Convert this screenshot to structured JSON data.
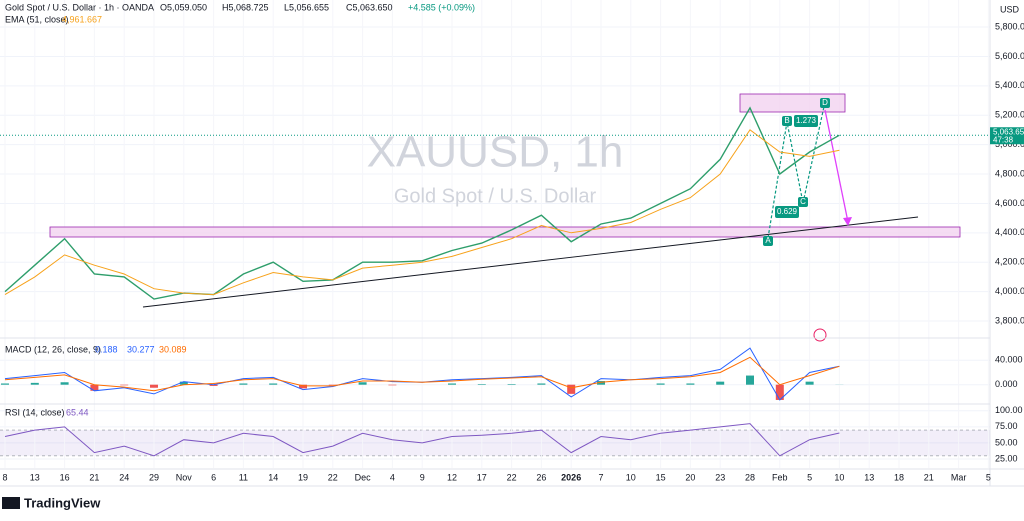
{
  "chart_data": [
    {
      "type": "line",
      "title": "Gold Spot / U.S. Dollar · 1h · OANDA",
      "legend_values": [
        "O5,059.050",
        "H5,068.725",
        "L5,056.655",
        "C5,063.650",
        "+4.585 (+0.09%)"
      ],
      "watermark": [
        "XAUUSD, 1h",
        "Gold Spot / U.S. Dollar"
      ],
      "currency": "USD",
      "last_price_label": "5,063.650",
      "countdown": "47:38",
      "pattern_labels": [
        "A",
        "B",
        "C",
        "D"
      ],
      "ratios": [
        0.629,
        1.273
      ],
      "categories": [
        "8",
        "13",
        "16",
        "21",
        "24",
        "29",
        "Nov",
        "6",
        "11",
        "14",
        "19",
        "22",
        "Dec",
        "4",
        "9",
        "12",
        "17",
        "22",
        "26",
        "2026",
        "7",
        "10",
        "15",
        "20",
        "23",
        "28",
        "Feb",
        "5",
        "10",
        "13",
        "18",
        "21",
        "Mar",
        "5"
      ],
      "series": [
        {
          "name": "Gold Spot / U.S. Dollar",
          "color": "#2e9e6b",
          "values": [
            4000,
            4180,
            4360,
            4120,
            4100,
            3950,
            3990,
            3980,
            4120,
            4200,
            4070,
            4080,
            4200,
            4200,
            4210,
            4280,
            4330,
            4420,
            4520,
            4340,
            4460,
            4500,
            4600,
            4700,
            4900,
            5250,
            4800,
            4950,
            5064,
            null,
            null,
            null,
            null,
            null
          ]
        },
        {
          "name": "EMA (51, close)",
          "legend_value": "4,961.667",
          "color": "#f7a21b",
          "values": [
            3980,
            4100,
            4250,
            4180,
            4120,
            4020,
            3990,
            3980,
            4060,
            4130,
            4100,
            4080,
            4160,
            4180,
            4200,
            4240,
            4300,
            4360,
            4450,
            4400,
            4430,
            4470,
            4560,
            4640,
            4800,
            5100,
            4950,
            4920,
            4962,
            null,
            null,
            null,
            null,
            null
          ]
        }
      ],
      "ylim": [
        3705,
        5984
      ],
      "yticks": [
        {
          "value": 3800,
          "label": "3,800.000"
        },
        {
          "value": 4000,
          "label": "4,000.000"
        },
        {
          "value": 4200,
          "label": "4,200.000"
        },
        {
          "value": 4400,
          "label": "4,400.000"
        },
        {
          "value": 4600,
          "label": "4,600.000"
        },
        {
          "value": 4800,
          "label": "4,800.000"
        },
        {
          "value": 5000,
          "label": "5,000.000"
        },
        {
          "value": 5200,
          "label": "5,200.000"
        },
        {
          "value": 5400,
          "label": "5,400.000"
        },
        {
          "value": 5600,
          "label": "5,600.000"
        },
        {
          "value": 5800,
          "label": "5,800.000"
        }
      ]
    },
    {
      "type": "macd",
      "title": "MACD (12, 26, close, 9)",
      "legend_values": [
        "0.188",
        "30.277",
        "30.089"
      ],
      "series": [
        {
          "name": "Histogram",
          "color": "#26a69a",
          "negative_color": "#ef5350",
          "values": [
            2,
            3,
            4,
            -10,
            -1,
            -5,
            5,
            -2,
            2,
            2,
            -6,
            -1,
            4,
            -1,
            0,
            2,
            1,
            1,
            2,
            -15,
            6,
            0,
            2,
            2,
            5,
            15,
            -25,
            5,
            0.188,
            null,
            null,
            null,
            null,
            null
          ]
        },
        {
          "name": "MACD",
          "color": "#2962ff",
          "values": [
            10,
            15,
            20,
            -10,
            -5,
            -15,
            5,
            0,
            10,
            12,
            -8,
            -3,
            10,
            5,
            4,
            8,
            10,
            12,
            15,
            -20,
            10,
            8,
            12,
            15,
            25,
            60,
            -25,
            20,
            30.277,
            null,
            null,
            null,
            null,
            null
          ]
        },
        {
          "name": "Signal",
          "color": "#ff6d00",
          "values": [
            8,
            12,
            16,
            0,
            -4,
            -10,
            0,
            2,
            8,
            10,
            -2,
            -2,
            6,
            6,
            4,
            6,
            9,
            11,
            13,
            -5,
            4,
            8,
            10,
            13,
            20,
            45,
            0,
            15,
            30.089,
            null,
            null,
            null,
            null,
            null
          ]
        }
      ],
      "ylim": [
        -30,
        70
      ],
      "yticks": [
        {
          "value": 0,
          "label": "0.000"
        },
        {
          "value": 40,
          "label": "40.000"
        }
      ]
    },
    {
      "type": "rsi",
      "title": "RSI (14, close)",
      "legend_values": [
        "65.44"
      ],
      "band": [
        30,
        70
      ],
      "series": [
        {
          "name": "RSI",
          "color": "#7e57c2",
          "values": [
            60,
            70,
            75,
            35,
            45,
            30,
            55,
            50,
            65,
            60,
            35,
            45,
            65,
            55,
            50,
            60,
            62,
            65,
            70,
            35,
            60,
            55,
            65,
            70,
            75,
            80,
            30,
            55,
            65.44,
            null,
            null,
            null,
            null,
            null
          ]
        }
      ],
      "ylim": [
        11,
        109
      ],
      "yticks": [
        {
          "value": 25,
          "label": "25.00"
        },
        {
          "value": 50,
          "label": "50.00"
        },
        {
          "value": 75,
          "label": "75.00"
        },
        {
          "value": 100,
          "label": "100.00"
        }
      ]
    }
  ],
  "footer": {
    "brand": "TradingView"
  }
}
